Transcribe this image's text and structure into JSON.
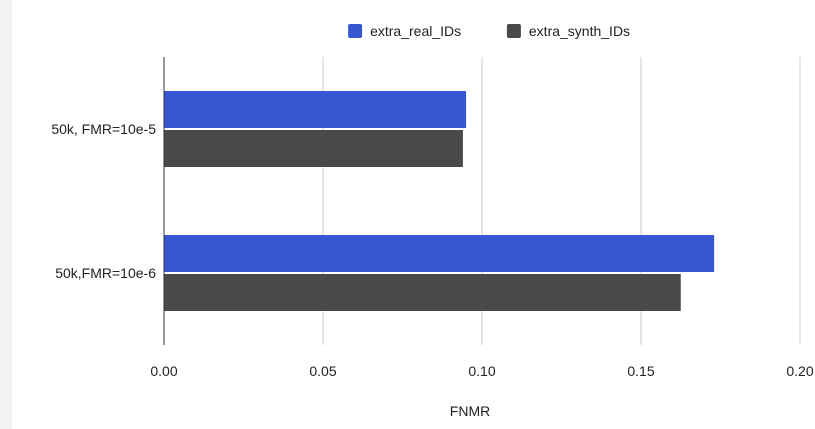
{
  "chart_data": {
    "type": "bar",
    "orientation": "horizontal",
    "categories": [
      "50k, FMR=10e-5",
      "50k,FMR=10e-6"
    ],
    "series": [
      {
        "name": "extra_real_IDs",
        "values": [
          0.095,
          0.173
        ],
        "color": "#3657cf"
      },
      {
        "name": "extra_synth_IDs",
        "values": [
          0.094,
          0.1625
        ],
        "color": "#4a4a4a"
      }
    ],
    "title": "",
    "xlabel": "FNMR",
    "ylabel": "",
    "xlim": [
      0,
      0.2
    ],
    "xticks": [
      "0.00",
      "0.05",
      "0.10",
      "0.15",
      "0.20"
    ],
    "grid": true,
    "legend_position": "top"
  }
}
